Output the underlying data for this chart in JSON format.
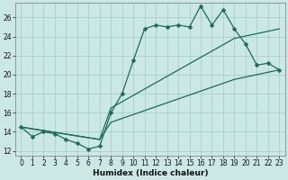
{
  "xlabel": "Humidex (Indice chaleur)",
  "bg_color": "#cce8e4",
  "grid_color": "#aacfcc",
  "line_color": "#1a6b5a",
  "xlim": [
    -0.5,
    23.5
  ],
  "ylim": [
    11.5,
    27.5
  ],
  "xticks": [
    0,
    1,
    2,
    3,
    4,
    5,
    6,
    7,
    8,
    9,
    10,
    11,
    12,
    13,
    14,
    15,
    16,
    17,
    18,
    19,
    20,
    21,
    22,
    23
  ],
  "yticks": [
    12,
    14,
    16,
    18,
    20,
    22,
    24,
    26
  ],
  "line1_x": [
    0,
    1,
    2,
    3,
    4,
    5,
    6,
    7,
    8,
    9,
    10,
    11,
    12,
    13,
    14,
    15,
    16,
    17,
    18,
    19,
    20,
    21,
    22,
    23
  ],
  "line1_y": [
    14.5,
    13.5,
    14.0,
    13.8,
    13.2,
    12.8,
    12.2,
    12.5,
    16.0,
    18.0,
    21.5,
    24.8,
    25.2,
    25.0,
    25.2,
    25.0,
    27.2,
    25.2,
    26.8,
    24.8,
    23.2,
    21.0,
    21.2,
    20.5
  ],
  "line2_x": [
    0,
    7,
    8,
    19,
    23
  ],
  "line2_y": [
    14.5,
    13.2,
    15.0,
    19.5,
    20.5
  ],
  "line3_x": [
    0,
    7,
    8,
    19,
    23
  ],
  "line3_y": [
    14.5,
    13.2,
    16.5,
    23.8,
    24.8
  ],
  "markersize": 2.5,
  "linewidth": 0.9
}
